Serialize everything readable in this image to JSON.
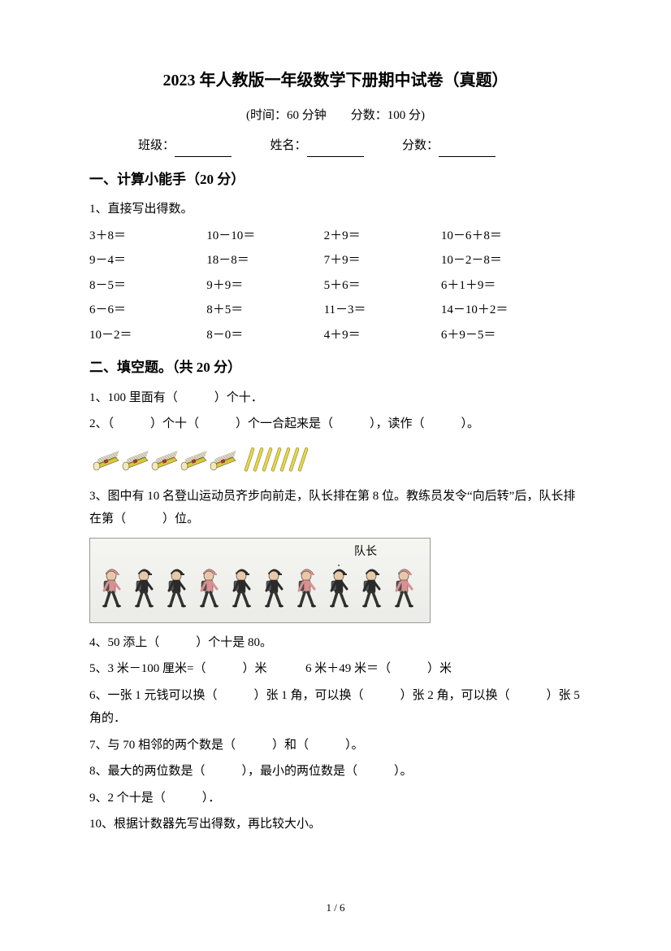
{
  "title": "2023 年人教版一年级数学下册期中试卷（真题）",
  "subtitle": "(时间：60 分钟　　分数：100 分)",
  "info": {
    "class_label": "班级：",
    "name_label": "姓名：",
    "score_label": "分数："
  },
  "section1": {
    "header": "一、计算小能手（20 分）",
    "q1_prompt": "1、直接写出得数。",
    "rows": [
      [
        "3＋8＝",
        "10－10＝",
        "2＋9＝",
        "10－6＋8＝"
      ],
      [
        "9－4＝",
        "18－8＝",
        "7＋9＝",
        "10－2－8＝"
      ],
      [
        "8－5＝",
        "9＋9＝",
        "5＋6＝",
        "6＋1＋9＝"
      ],
      [
        "6－6＝",
        "8＋5＝",
        "11－3＝",
        "14－10＋2＝"
      ],
      [
        "10－2＝",
        "8－0＝",
        "4＋9＝",
        "6＋9－5＝"
      ]
    ]
  },
  "section2": {
    "header": "二、填空题。（共 20 分）",
    "q1": "1、100 里面有（　　　）个十．",
    "q2": "2、（　　　）个十（　　　）个一合起来是（　　　），读作（　　　）。",
    "q3": "3、图中有 10 名登山运动员齐步向前走，队长排在第 8 位。教练员发令“向后转”后，队长排在第（　　　）位。",
    "climber_label": "队长",
    "q4": "4、50 添上（　　　）个十是 80。",
    "q5a": "5、3 米－100 厘米=（　　　）米",
    "q5b": "6 米＋49 米＝（　　　）米",
    "q6": "6、一张 1 元钱可以换（　　　）张 1 角，可以换（　　　）张 2 角，可以换（　　　）张 5 角的．",
    "q7": "7、与 70 相邻的两个数是（　　　）和（　　　）。",
    "q8": "8、最大的两位数是（　　　），最小的两位数是（　　　）。",
    "q9": "9、2 个十是（　　　）．",
    "q10": "10、根据计数器先写出得数，再比较大小。"
  },
  "page_num": "1 / 6",
  "colors": {
    "bundle_fill": "#d9c838",
    "bundle_stroke": "#6b5a1f",
    "stick_fill": "#e8d84a",
    "stick_stroke": "#8a7a2a",
    "climber_pink": "#d89090",
    "climber_dark": "#2a2a2a",
    "climber_skin": "#e8c8a8"
  }
}
